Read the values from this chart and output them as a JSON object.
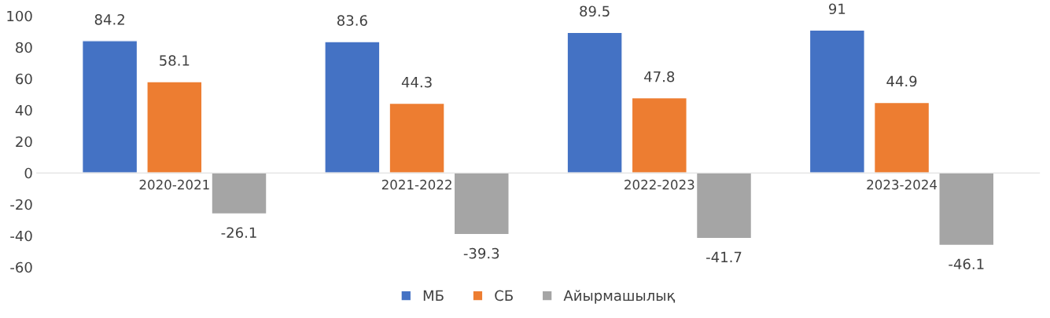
{
  "chart_data": {
    "type": "bar",
    "categories": [
      "2020-2021",
      "2021-2022",
      "2022-2023",
      "2023-2024"
    ],
    "series": [
      {
        "name": "МБ",
        "color": "#4472c4",
        "values": [
          84.2,
          83.6,
          89.5,
          91
        ]
      },
      {
        "name": "СБ",
        "color": "#ed7d31",
        "values": [
          58.1,
          44.3,
          47.8,
          44.9
        ]
      },
      {
        "name": "Айырмашылық",
        "color": "#a5a5a5",
        "values": [
          -26.1,
          -39.3,
          -41.7,
          -46.1
        ]
      }
    ],
    "ylim": [
      -60,
      100
    ],
    "yticks": [
      -60,
      -40,
      -20,
      0,
      20,
      40,
      60,
      80,
      100
    ],
    "grid": false,
    "legend": "bottom",
    "data_labels": true
  }
}
